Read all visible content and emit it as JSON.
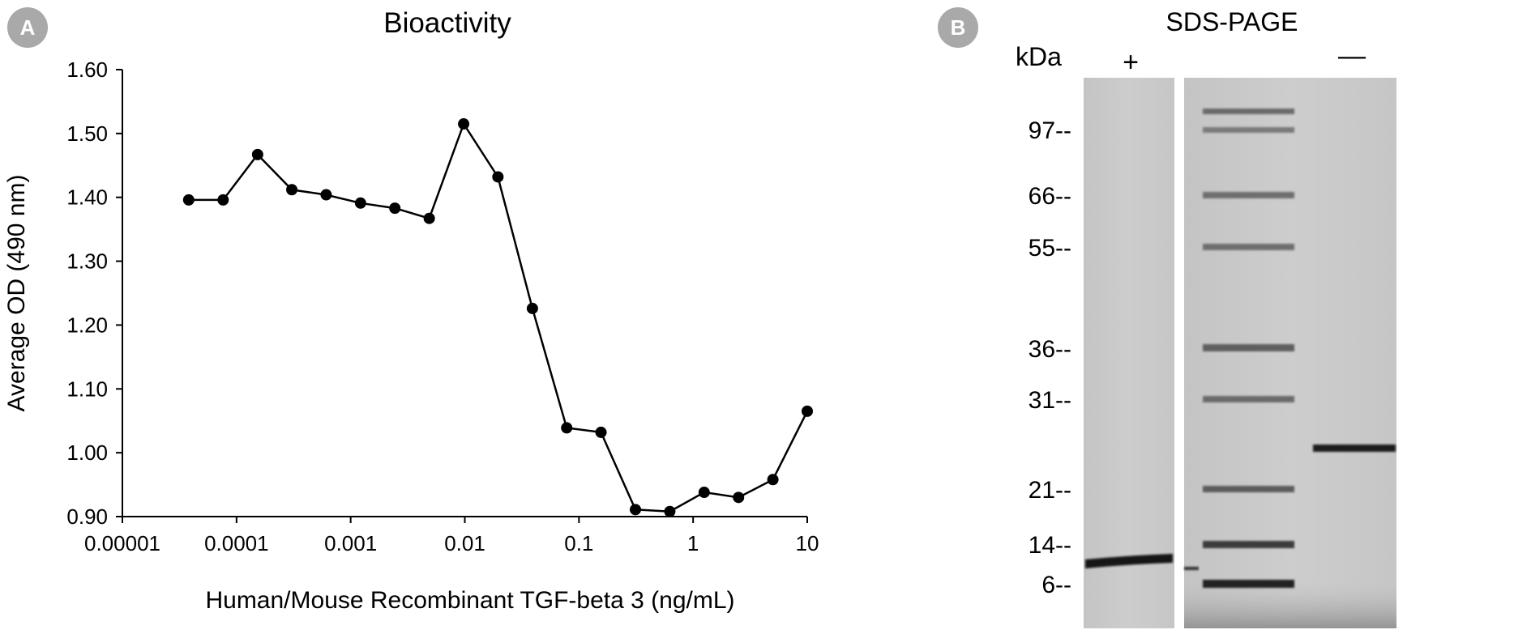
{
  "panel_a": {
    "badge": "A",
    "chart_data": {
      "type": "line",
      "title": "Bioactivity",
      "xlabel": "Human/Mouse Recombinant TGF-beta 3 (ng/mL)",
      "ylabel": "Average OD (490 nm)",
      "x_scale": "log",
      "xlim": [
        1e-05,
        10
      ],
      "ylim": [
        0.9,
        1.6
      ],
      "x_ticks": [
        "0.00001",
        "0.0001",
        "0.001",
        "0.01",
        "0.1",
        "1",
        "10"
      ],
      "y_ticks": [
        "0.90",
        "1.00",
        "1.10",
        "1.20",
        "1.30",
        "1.40",
        "1.50",
        "1.60"
      ],
      "grid": false,
      "legend": "none",
      "series": [
        {
          "x": [
            3.81e-05,
            7.63e-05,
            0.000153,
            0.000305,
            0.00061,
            0.00122,
            0.00244,
            0.00488,
            0.00977,
            0.0195,
            0.0391,
            0.0781,
            0.156,
            0.3125,
            0.625,
            1.25,
            2.5,
            5,
            10
          ],
          "y": [
            1.396,
            1.396,
            1.467,
            1.412,
            1.404,
            1.391,
            1.383,
            1.367,
            1.515,
            1.432,
            1.226,
            1.039,
            1.032,
            0.911,
            0.908,
            0.938,
            0.93,
            0.958,
            1.065
          ]
        }
      ]
    }
  },
  "panel_b": {
    "badge": "B",
    "title": "SDS-PAGE",
    "unit_label": "kDa",
    "lane_labels": {
      "reduced": "+",
      "nonreduced": "—"
    },
    "markers": [
      {
        "label": "97--",
        "kda": 97
      },
      {
        "label": "66--",
        "kda": 66
      },
      {
        "label": "55--",
        "kda": 55
      },
      {
        "label": "36--",
        "kda": 36
      },
      {
        "label": "31--",
        "kda": 31
      },
      {
        "label": "21--",
        "kda": 21
      },
      {
        "label": "14--",
        "kda": 14
      },
      {
        "label": "6--",
        "kda": 6
      }
    ]
  }
}
